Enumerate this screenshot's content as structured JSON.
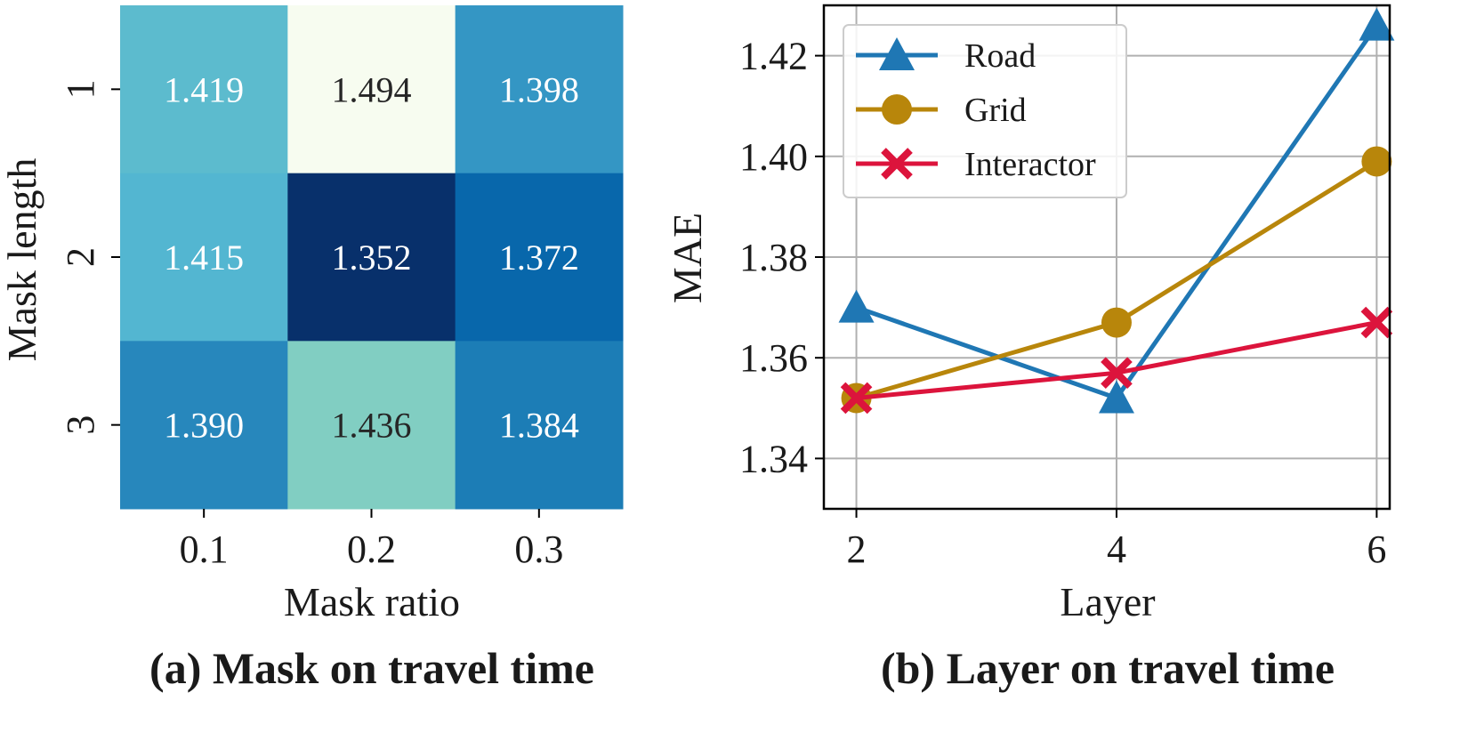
{
  "chart_data": [
    {
      "type": "heatmap",
      "caption": "(a) Mask on travel time",
      "xlabel": "Mask ratio",
      "ylabel": "Mask length",
      "x_categories": [
        "0.1",
        "0.2",
        "0.3"
      ],
      "y_categories": [
        "1",
        "2",
        "3"
      ],
      "values": [
        [
          1.419,
          1.494,
          1.398
        ],
        [
          1.415,
          1.352,
          1.372
        ],
        [
          1.39,
          1.436,
          1.384
        ]
      ],
      "cell_labels": [
        [
          "1.419",
          "1.494",
          "1.398"
        ],
        [
          "1.415",
          "1.352",
          "1.372"
        ],
        [
          "1.390",
          "1.436",
          "1.384"
        ]
      ],
      "colormap": "GnBu_r",
      "colors": [
        "#08306b",
        "#0868ac",
        "#2b8cbe",
        "#4eb3d3",
        "#7bccc4",
        "#a8ddb5",
        "#ccebc5",
        "#f7fcf0"
      ],
      "grid": false
    },
    {
      "type": "line",
      "caption": "(b) Layer on travel time",
      "xlabel": "Layer",
      "ylabel": "MAE",
      "x": [
        2,
        4,
        6
      ],
      "x_tick_labels": [
        "2",
        "4",
        "6"
      ],
      "y_ticks": [
        1.34,
        1.36,
        1.38,
        1.4,
        1.42
      ],
      "y_tick_labels": [
        "1.34",
        "1.36",
        "1.38",
        "1.40",
        "1.42"
      ],
      "xlim": [
        1.75,
        6.1
      ],
      "ylim": [
        1.33,
        1.43
      ],
      "grid": true,
      "legend_position": "top-left",
      "series": [
        {
          "name": "Road",
          "values": [
            1.37,
            1.352,
            1.426
          ],
          "color": "#1f77b4",
          "marker": "triangle"
        },
        {
          "name": "Grid",
          "values": [
            1.352,
            1.367,
            1.399
          ],
          "color": "#b8860b",
          "marker": "circle"
        },
        {
          "name": "Interactor",
          "values": [
            1.352,
            1.357,
            1.367
          ],
          "color": "#dc143c",
          "marker": "x"
        }
      ]
    }
  ]
}
